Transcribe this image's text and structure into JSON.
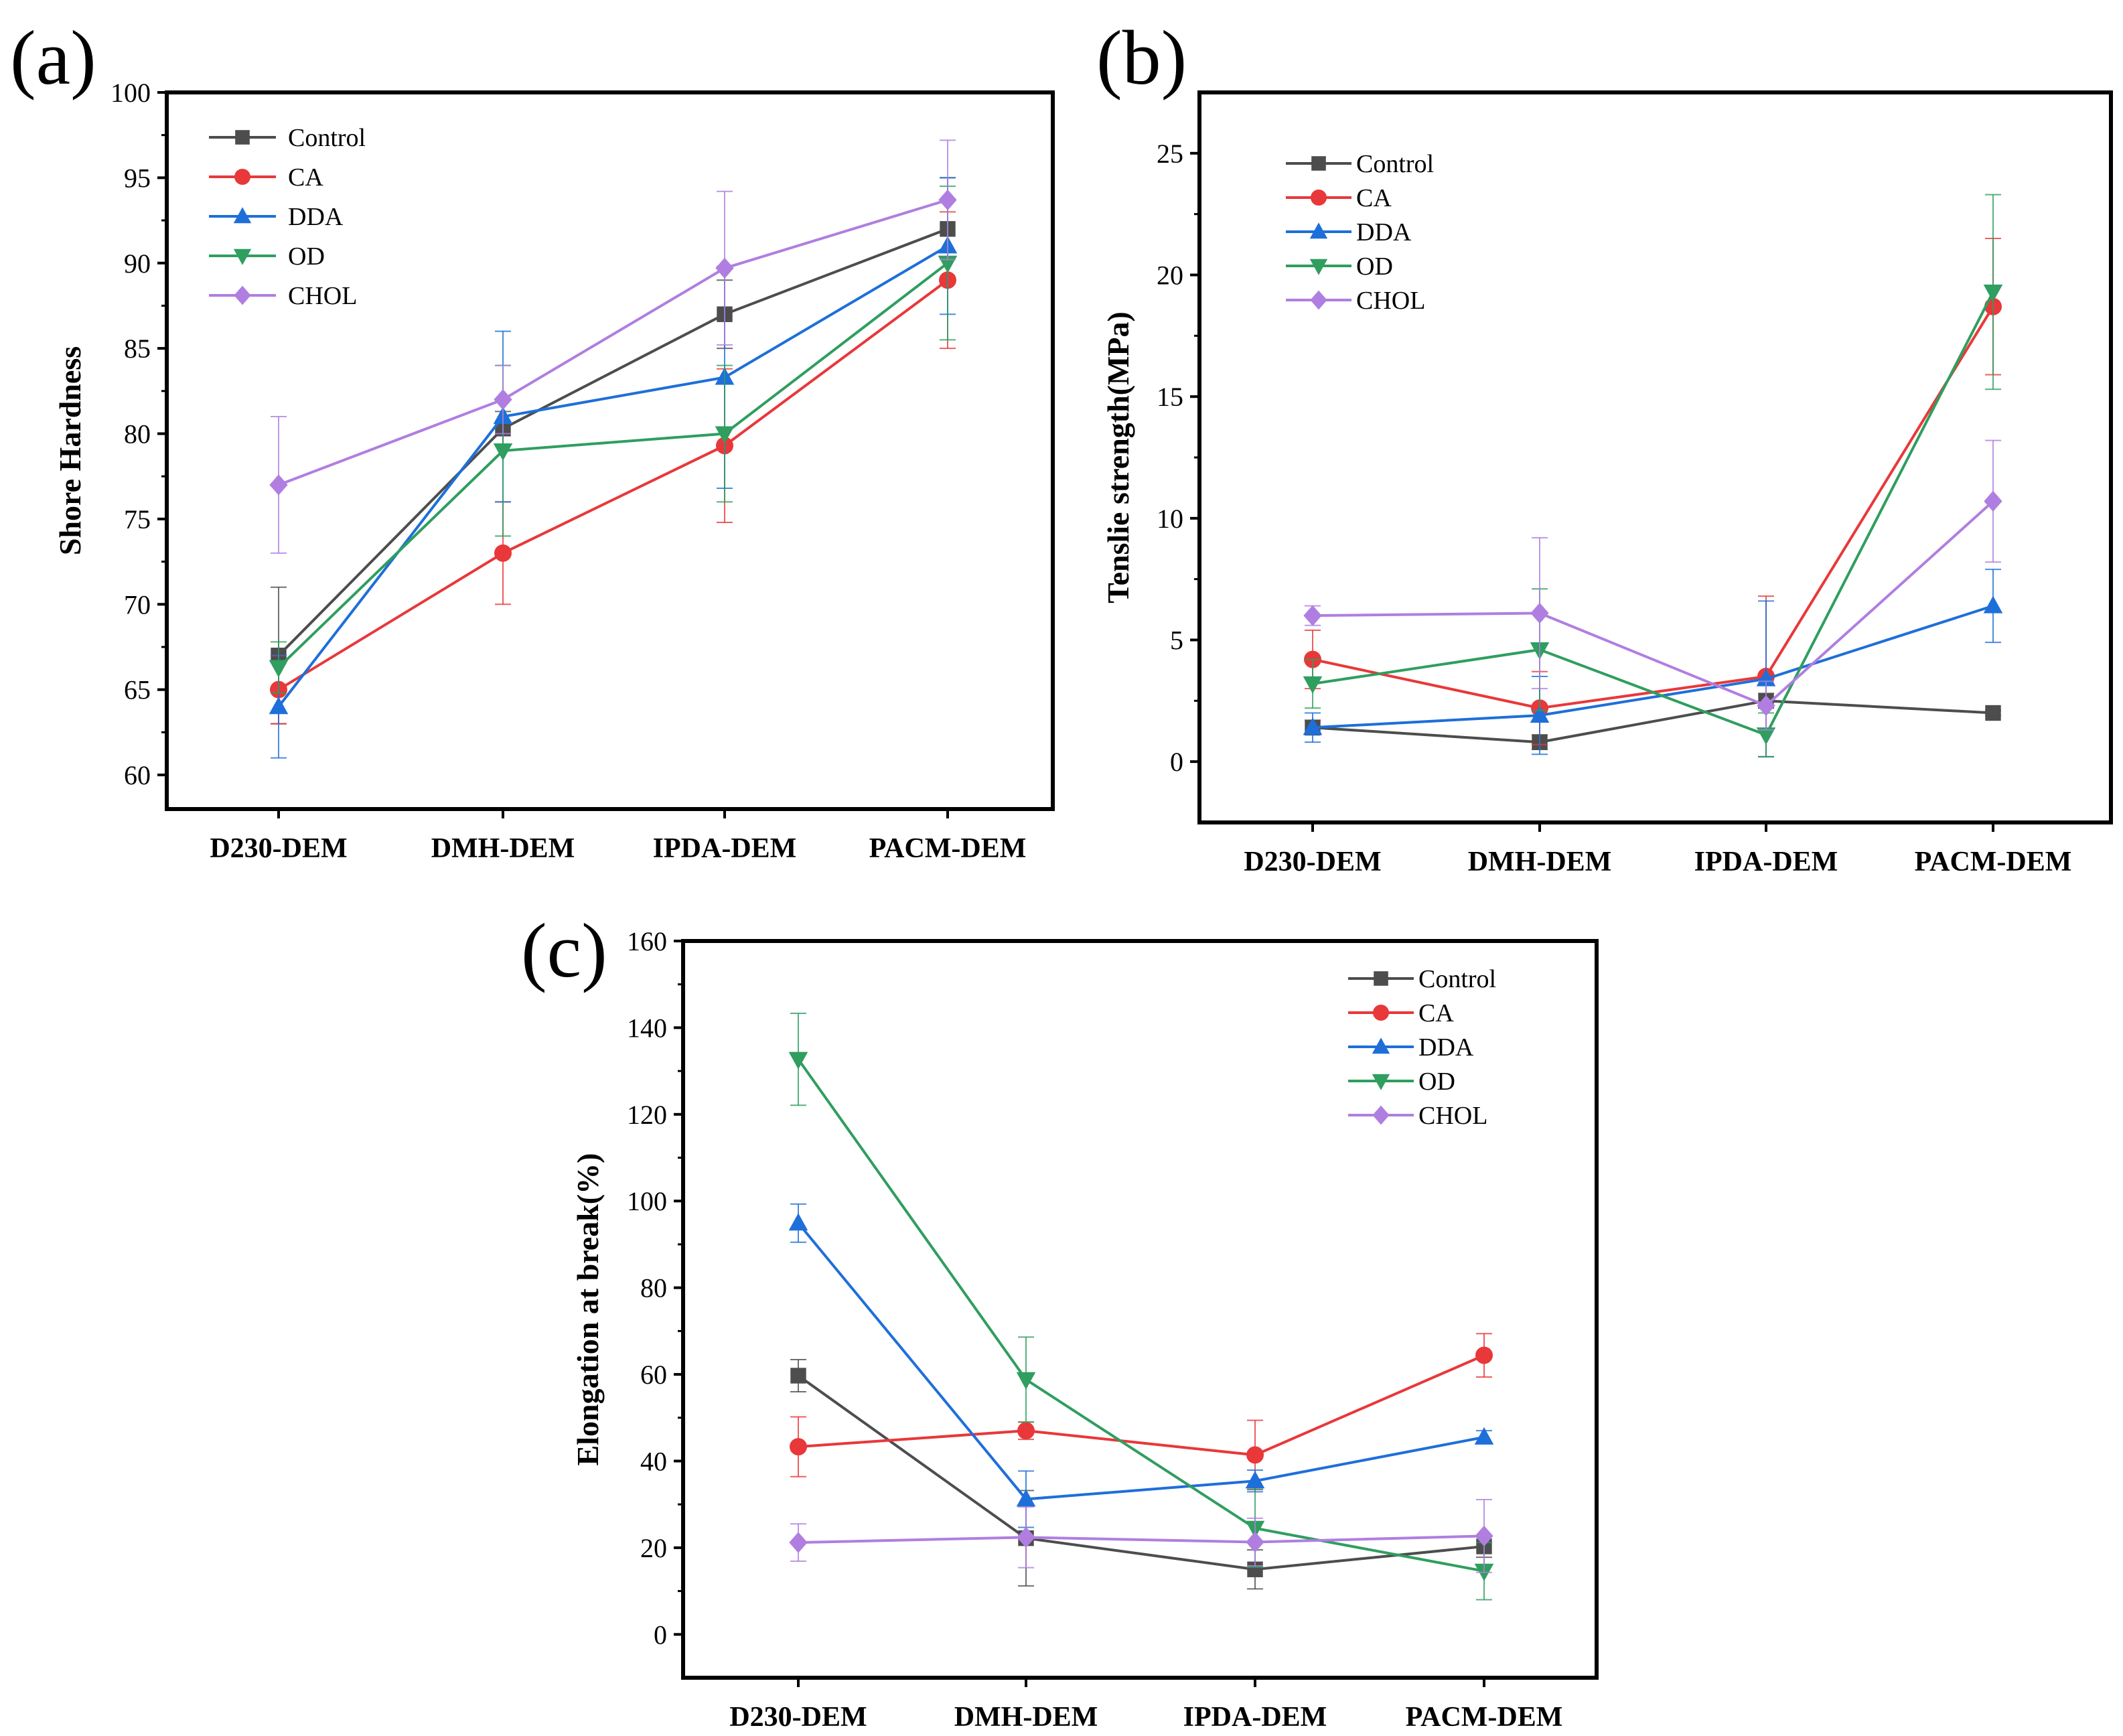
{
  "figure": {
    "series_colors": {
      "Control": "#4d4d4d",
      "CA": "#e8383a",
      "DDA": "#1e6fd9",
      "OD": "#2f9e5f",
      "CHOL": "#b07ee0"
    },
    "series_markers": {
      "Control": "square",
      "CA": "circle",
      "DDA": "triangle-up",
      "OD": "triangle-down",
      "CHOL": "diamond"
    }
  },
  "chart_data": [
    {
      "id": "a",
      "panel_label": "(a)",
      "type": "line",
      "title": "",
      "xlabel": "",
      "ylabel": "Shore Hardness",
      "categories": [
        "D230-DEM",
        "DMH-DEM",
        "IPDA-DEM",
        "PACM-DEM"
      ],
      "ylim": [
        58,
        100
      ],
      "yticks": [
        60,
        65,
        70,
        75,
        80,
        85,
        90,
        95,
        100
      ],
      "ytick_labels": [
        "60",
        "65",
        "70",
        "75",
        "80",
        "85",
        "90",
        "95",
        "100"
      ],
      "legend": [
        "Control",
        "CA",
        "DDA",
        "OD",
        "CHOL"
      ],
      "series": [
        {
          "name": "Control",
          "values": [
            67,
            80.3,
            87,
            92
          ],
          "errors": [
            4,
            1,
            2,
            3
          ]
        },
        {
          "name": "CA",
          "values": [
            65,
            73,
            79.3,
            89
          ],
          "errors": [
            2,
            3,
            4.5,
            4
          ]
        },
        {
          "name": "DDA",
          "values": [
            64,
            81,
            83.3,
            91
          ],
          "errors": [
            3,
            5,
            6.5,
            4
          ]
        },
        {
          "name": "OD",
          "values": [
            66.3,
            79,
            80,
            90
          ],
          "errors": [
            1.5,
            5,
            4,
            4.5
          ]
        },
        {
          "name": "CHOL",
          "values": [
            77,
            82,
            89.7,
            93.7
          ],
          "errors": [
            4,
            2,
            4.5,
            3.5
          ]
        }
      ]
    },
    {
      "id": "b",
      "panel_label": "(b)",
      "type": "line",
      "title": "",
      "xlabel": "",
      "ylabel": "Tenslie strength(MPa)",
      "categories": [
        "D230-DEM",
        "DMH-DEM",
        "IPDA-DEM",
        "PACM-DEM"
      ],
      "ylim": [
        -2.5,
        27.5
      ],
      "yticks": [
        0,
        5,
        10,
        15,
        20,
        25
      ],
      "ytick_labels": [
        "0",
        "5",
        "10",
        "15",
        "20",
        "25"
      ],
      "legend": [
        "Control",
        "CA",
        "DDA",
        "OD",
        "CHOL"
      ],
      "series": [
        {
          "name": "Control",
          "values": [
            1.4,
            0.8,
            2.5,
            2.0
          ],
          "errors": [
            0.3,
            0.3,
            0.3,
            0.1
          ]
        },
        {
          "name": "CA",
          "values": [
            4.2,
            2.2,
            3.5,
            18.7
          ],
          "errors": [
            1.2,
            1.5,
            3.3,
            2.8
          ]
        },
        {
          "name": "DDA",
          "values": [
            1.4,
            1.9,
            3.4,
            6.4
          ],
          "errors": [
            0.6,
            1.6,
            3.2,
            1.5
          ]
        },
        {
          "name": "OD",
          "values": [
            3.2,
            4.6,
            1.1,
            19.3
          ],
          "errors": [
            1.0,
            2.5,
            0.9,
            4.0
          ]
        },
        {
          "name": "CHOL",
          "values": [
            6.0,
            6.1,
            2.3,
            10.7
          ],
          "errors": [
            0.4,
            3.1,
            1.0,
            2.5
          ]
        }
      ]
    },
    {
      "id": "c",
      "panel_label": "(c)",
      "type": "line",
      "title": "",
      "xlabel": "",
      "ylabel": "Elongation at break(%)",
      "categories": [
        "D230-DEM",
        "DMH-DEM",
        "IPDA-DEM",
        "PACM-DEM"
      ],
      "ylim": [
        -10,
        160
      ],
      "yticks": [
        0,
        20,
        40,
        60,
        80,
        100,
        120,
        140,
        160
      ],
      "ytick_labels": [
        "0",
        "20",
        "40",
        "60",
        "80",
        "100",
        "120",
        "140",
        "160"
      ],
      "legend": [
        "Control",
        "CA",
        "DDA",
        "OD",
        "CHOL"
      ],
      "series": [
        {
          "name": "Control",
          "values": [
            59.7,
            22.2,
            15.0,
            20.3
          ],
          "errors": [
            3.7,
            11.0,
            4.5,
            2.5
          ]
        },
        {
          "name": "CA",
          "values": [
            43.3,
            47.0,
            41.4,
            64.4
          ],
          "errors": [
            6.9,
            2.0,
            8.0,
            5.0
          ]
        },
        {
          "name": "DDA",
          "values": [
            94.9,
            31.2,
            35.4,
            45.5
          ],
          "errors": [
            4.4,
            6.5,
            2.5,
            1.5
          ]
        },
        {
          "name": "OD",
          "values": [
            132.7,
            58.8,
            24.5,
            14.6
          ],
          "errors": [
            10.6,
            9.8,
            9.0,
            6.6
          ]
        },
        {
          "name": "CHOL",
          "values": [
            21.2,
            22.4,
            21.3,
            22.7
          ],
          "errors": [
            4.3,
            7.0,
            5.5,
            8.4
          ]
        }
      ]
    }
  ]
}
